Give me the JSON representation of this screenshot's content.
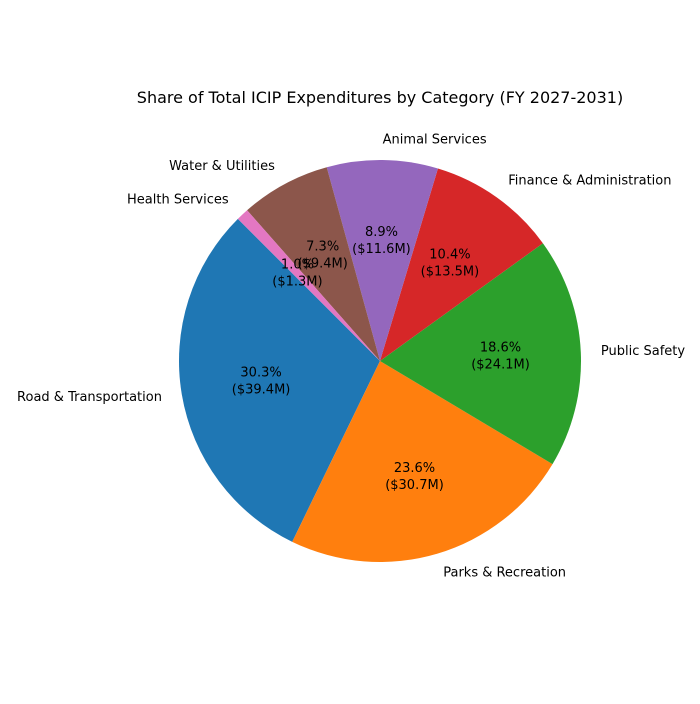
{
  "chart_data": {
    "type": "pie",
    "title": "Share of Total ICIP Expenditures by Category (FY 2027-2031)",
    "slices": [
      {
        "label": "Road & Transportation",
        "percent_label": "30.3%",
        "amount_label": "($39.4M)",
        "value": 39.4,
        "color": "#1f77b4"
      },
      {
        "label": "Parks & Recreation",
        "percent_label": "23.6%",
        "amount_label": "($30.7M)",
        "value": 30.7,
        "color": "#ff7f0e"
      },
      {
        "label": "Public Safety",
        "percent_label": "18.6%",
        "amount_label": "($24.1M)",
        "value": 24.1,
        "color": "#2ca02c"
      },
      {
        "label": "Finance & Administration",
        "percent_label": "10.4%",
        "amount_label": "($13.5M)",
        "value": 13.5,
        "color": "#d62728"
      },
      {
        "label": "Animal Services",
        "percent_label": "8.9%",
        "amount_label": "($11.6M)",
        "value": 11.6,
        "color": "#9467bd"
      },
      {
        "label": "Water & Utilities",
        "percent_label": "7.3%",
        "amount_label": "($9.4M)",
        "value": 9.4,
        "color": "#8c564b"
      },
      {
        "label": "Health Services",
        "percent_label": "1.0%",
        "amount_label": "($1.3M)",
        "value": 1.3,
        "color": "#e377c2"
      }
    ],
    "start_angle_deg": 135,
    "direction": "counterclockwise",
    "legend": "none"
  }
}
